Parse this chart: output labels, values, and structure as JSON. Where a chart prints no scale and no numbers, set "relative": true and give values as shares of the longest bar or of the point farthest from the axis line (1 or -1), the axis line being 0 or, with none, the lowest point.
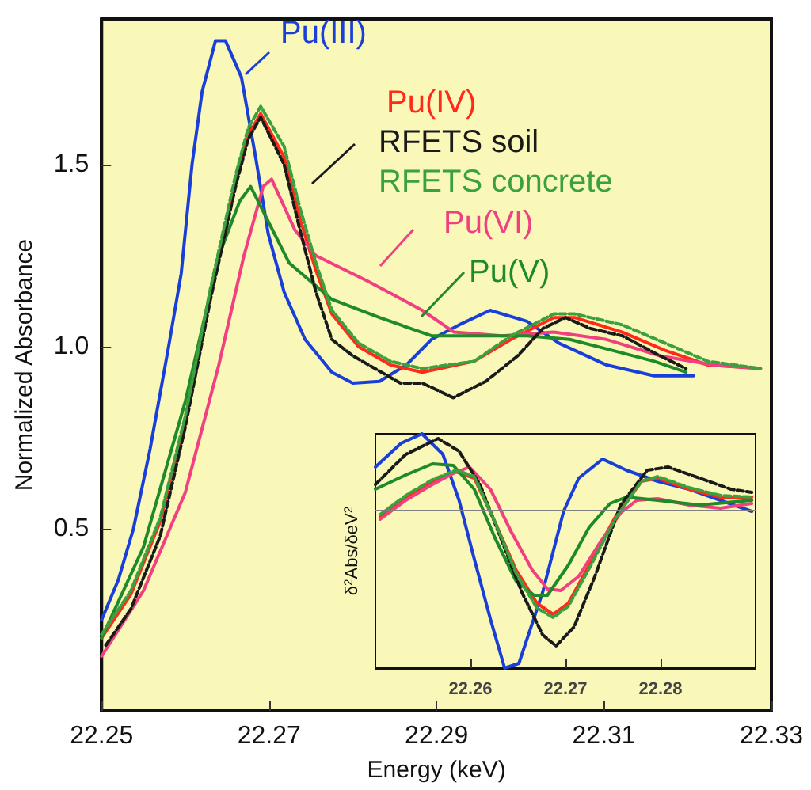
{
  "chart_data": [
    {
      "type": "line",
      "legend": "top right",
      "xlabel": "Energy (keV)",
      "ylabel": "Normalized Absorbance",
      "xlim": [
        22.25,
        22.33
      ],
      "xticks": [
        22.25,
        22.27,
        22.29,
        22.31,
        22.33
      ],
      "ylim": [
        0,
        1.9
      ],
      "yticks": [
        0.5,
        {
          "value": 1,
          "label": "1.0"
        },
        1.5
      ],
      "series": [
        {
          "name": "Pu(III)",
          "color": "#1a3fd8",
          "x": [
            22.25,
            22.252,
            22.2538,
            22.2558,
            22.258,
            22.2595,
            22.2608,
            22.262,
            22.2636,
            22.2648,
            22.2667,
            22.2684,
            22.2699,
            22.2718,
            22.2743,
            22.2775,
            22.28,
            22.2832,
            22.2864,
            22.2894,
            22.2927,
            22.2964,
            22.3008,
            22.3046,
            22.3103,
            22.316,
            22.3207
          ],
          "values": [
            0.25,
            0.36,
            0.5,
            0.72,
            1.0,
            1.2,
            1.5,
            1.7,
            1.84,
            1.84,
            1.74,
            1.52,
            1.31,
            1.15,
            1.02,
            0.93,
            0.9,
            0.905,
            0.95,
            1.02,
            1.06,
            1.1,
            1.07,
            1.01,
            0.95,
            0.92,
            0.92
          ]
        },
        {
          "name": "Pu(IV)",
          "color": "#ff2a1a",
          "x": [
            22.25,
            22.2535,
            22.257,
            22.26,
            22.263,
            22.266,
            22.2675,
            22.269,
            22.2718,
            22.2737,
            22.2756,
            22.2775,
            22.2807,
            22.2845,
            22.2883,
            22.2945,
            22.2989,
            22.304,
            22.3065,
            22.3122,
            22.3173,
            22.3224,
            22.3287
          ],
          "values": [
            0.2,
            0.32,
            0.52,
            0.8,
            1.15,
            1.45,
            1.58,
            1.64,
            1.52,
            1.35,
            1.21,
            1.09,
            1.0,
            0.95,
            0.93,
            0.96,
            1.02,
            1.08,
            1.08,
            1.04,
            0.99,
            0.95,
            0.94
          ]
        },
        {
          "name": "RFETS soil",
          "color": "#1a1a1a",
          "line_style": "dashed",
          "x": [
            22.2505,
            22.2535,
            22.257,
            22.26,
            22.263,
            22.266,
            22.2675,
            22.269,
            22.2718,
            22.2737,
            22.2756,
            22.2775,
            22.28,
            22.2857,
            22.2883,
            22.292,
            22.2959,
            22.2997,
            22.3027,
            22.3054,
            22.3084,
            22.3122,
            22.3167,
            22.3198
          ],
          "values": [
            0.18,
            0.28,
            0.48,
            0.78,
            1.13,
            1.44,
            1.57,
            1.63,
            1.5,
            1.32,
            1.15,
            1.02,
            0.975,
            0.9,
            0.9,
            0.86,
            0.905,
            0.975,
            1.05,
            1.08,
            1.05,
            1.03,
            0.975,
            0.94
          ]
        },
        {
          "name": "RFETS concrete",
          "color": "#3aa040",
          "line_style": "dashed",
          "x": [
            22.25,
            22.2535,
            22.257,
            22.26,
            22.263,
            22.266,
            22.2675,
            22.269,
            22.2718,
            22.2737,
            22.2756,
            22.2775,
            22.2807,
            22.2845,
            22.2883,
            22.2945,
            22.2989,
            22.304,
            22.3065,
            22.3122,
            22.3173,
            22.3224,
            22.3287
          ],
          "values": [
            0.21,
            0.33,
            0.53,
            0.81,
            1.16,
            1.47,
            1.6,
            1.66,
            1.55,
            1.38,
            1.23,
            1.1,
            1.01,
            0.96,
            0.94,
            0.96,
            1.03,
            1.09,
            1.09,
            1.06,
            1.01,
            0.96,
            0.94
          ]
        },
        {
          "name": "Pu(VI)",
          "color": "#f0407f",
          "x": [
            22.25,
            22.255,
            22.26,
            22.264,
            22.267,
            22.2693,
            22.2703,
            22.2731,
            22.2756,
            22.2818,
            22.2883,
            22.2921,
            22.2978,
            22.304,
            22.3103,
            22.3167,
            22.323,
            22.3287
          ],
          "values": [
            0.15,
            0.33,
            0.6,
            0.95,
            1.25,
            1.44,
            1.46,
            1.32,
            1.25,
            1.18,
            1.1,
            1.04,
            1.03,
            1.04,
            1.02,
            0.975,
            0.95,
            0.94
          ]
        },
        {
          "name": "Pu(V)",
          "color": "#1e8a2a",
          "x": [
            22.25,
            22.255,
            22.26,
            22.264,
            22.2665,
            22.2678,
            22.2724,
            22.2775,
            22.2832,
            22.2894,
            22.2945,
            22.3008,
            22.3059,
            22.311,
            22.316,
            22.3198
          ],
          "values": [
            0.2,
            0.45,
            0.85,
            1.25,
            1.4,
            1.44,
            1.23,
            1.13,
            1.08,
            1.03,
            1.03,
            1.03,
            1.02,
            0.99,
            0.96,
            0.93
          ]
        }
      ]
    },
    {
      "type": "line",
      "relative": true,
      "tick_labels": "x",
      "ylabel": "δ$^{2}$Abs/δeV$^{2}$",
      "xlim": [
        22.25,
        22.29
      ],
      "xticks": [
        22.26,
        22.27,
        22.28
      ],
      "ref_lines": [
        {
          "axis": "y",
          "value": 0,
          "color": "#808080"
        }
      ],
      "series": [
        {
          "color": "#1a3fd8",
          "x": [
            22.25,
            22.2527,
            22.2549,
            22.2571,
            22.2588,
            22.2604,
            22.2621,
            22.2636,
            22.2651,
            22.2676,
            22.2698,
            22.2714,
            22.2739,
            22.2764,
            22.2797,
            22.283,
            22.2863,
            22.2896
          ],
          "values": [
            0.27,
            0.42,
            0.48,
            0.35,
            0.06,
            -0.31,
            -0.69,
            -1,
            -0.97,
            -0.52,
            -0.01,
            0.2,
            0.32,
            0.25,
            0.18,
            0.13,
            0.06,
            -0.01
          ]
        },
        {
          "color": "#ff2a1a",
          "x": [
            22.2505,
            22.2532,
            22.256,
            22.2585,
            22.2604,
            22.2626,
            22.2648,
            22.267,
            22.2687,
            22.2703,
            22.2725,
            22.2753,
            22.278,
            22.2797,
            22.283,
            22.2863,
            22.2896
          ],
          "values": [
            -0.04,
            0.08,
            0.18,
            0.24,
            0.2,
            -0.08,
            -0.38,
            -0.59,
            -0.66,
            -0.59,
            -0.35,
            -0.04,
            0.18,
            0.2,
            0.13,
            0.08,
            0.08
          ]
        },
        {
          "color": "#1a1a1a",
          "line_style": "dashed",
          "x": [
            22.25,
            22.2532,
            22.2566,
            22.2588,
            22.261,
            22.2632,
            22.2654,
            22.2676,
            22.269,
            22.2709,
            22.2731,
            22.2758,
            22.2786,
            22.2808,
            22.2841,
            22.2874,
            22.2896
          ],
          "values": [
            0.16,
            0.35,
            0.45,
            0.37,
            0.16,
            -0.18,
            -0.52,
            -0.79,
            -0.86,
            -0.74,
            -0.42,
            0.03,
            0.25,
            0.27,
            0.2,
            0.13,
            0.11
          ]
        },
        {
          "color": "#3aa040",
          "line_style": "dashed",
          "x": [
            22.2505,
            22.2532,
            22.256,
            22.2585,
            22.2604,
            22.2626,
            22.2648,
            22.267,
            22.2687,
            22.2703,
            22.2725,
            22.2753,
            22.278,
            22.2797,
            22.283,
            22.2863,
            22.2896
          ],
          "values": [
            -0.03,
            0.09,
            0.19,
            0.25,
            0.21,
            -0.08,
            -0.4,
            -0.62,
            -0.68,
            -0.61,
            -0.37,
            -0.05,
            0.18,
            0.21,
            0.14,
            0.09,
            0.08
          ]
        },
        {
          "color": "#f0407f",
          "x": [
            22.2505,
            22.2532,
            22.256,
            22.2582,
            22.2599,
            22.2621,
            22.2643,
            22.2665,
            22.2681,
            22.2695,
            22.2714,
            22.2736,
            22.2758,
            22.2775,
            22.2797,
            22.283,
            22.2863,
            22.2896
          ],
          "values": [
            -0.06,
            0.06,
            0.16,
            0.23,
            0.27,
            0.13,
            -0.14,
            -0.38,
            -0.5,
            -0.51,
            -0.42,
            -0.21,
            -0.02,
            0.06,
            0.07,
            0.03,
            0.01,
            0.04
          ]
        },
        {
          "color": "#1e8a2a",
          "x": [
            22.25,
            22.2532,
            22.256,
            22.2582,
            22.2604,
            22.2626,
            22.2648,
            22.2667,
            22.2681,
            22.2703,
            22.2725,
            22.2747,
            22.2764,
            22.2797,
            22.2841,
            22.2896
          ],
          "values": [
            0.13,
            0.22,
            0.29,
            0.28,
            0.13,
            -0.18,
            -0.45,
            -0.54,
            -0.54,
            -0.35,
            -0.11,
            0.04,
            0.08,
            0.06,
            0.03,
            0.06
          ]
        }
      ]
    }
  ]
}
